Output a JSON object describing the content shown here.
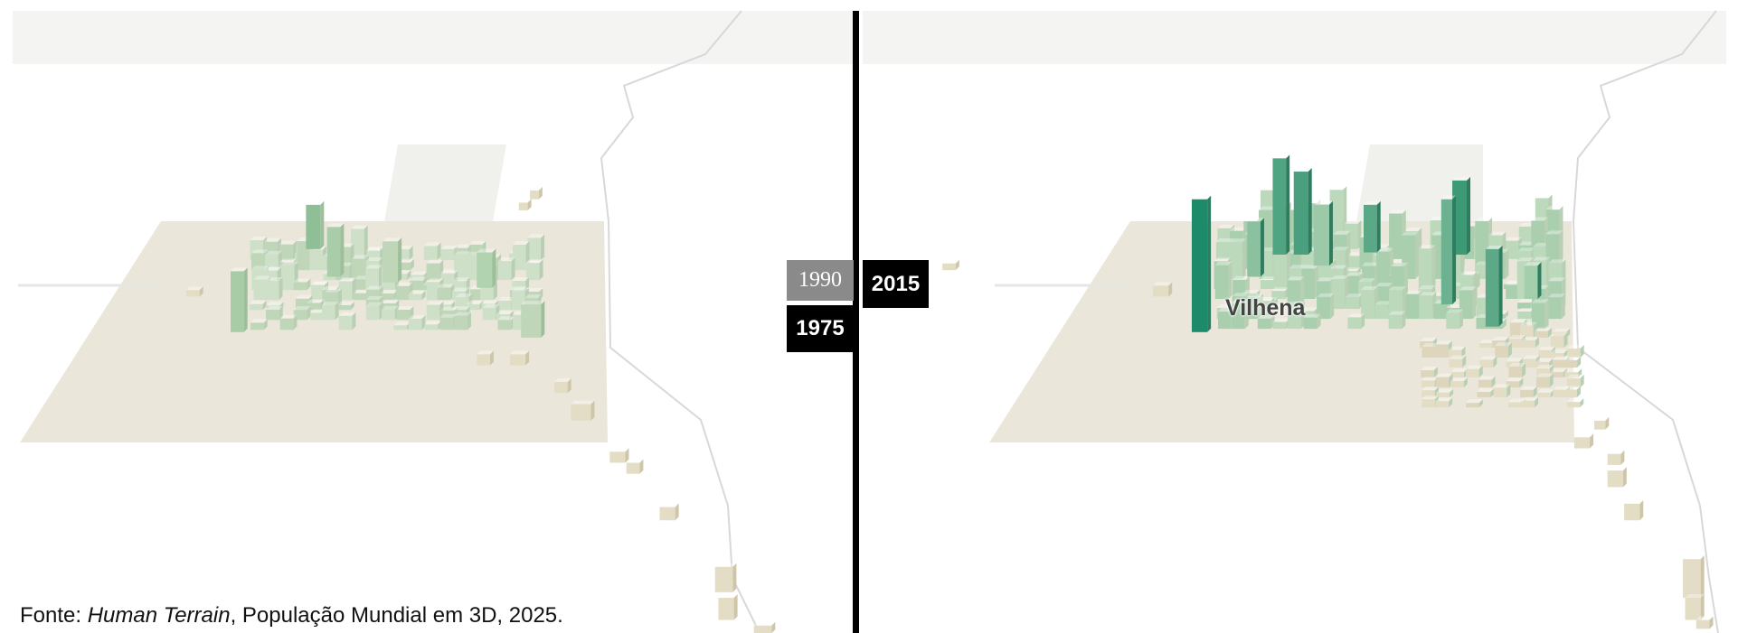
{
  "labels": {
    "year_a_top": "1990",
    "year_a": "1975",
    "year_b": "2015",
    "city": "Vilhena"
  },
  "source": {
    "prefix": "Fonte: ",
    "work": "Human Terrain",
    "suffix": ", População Mundial em 3D, 2025."
  }
}
